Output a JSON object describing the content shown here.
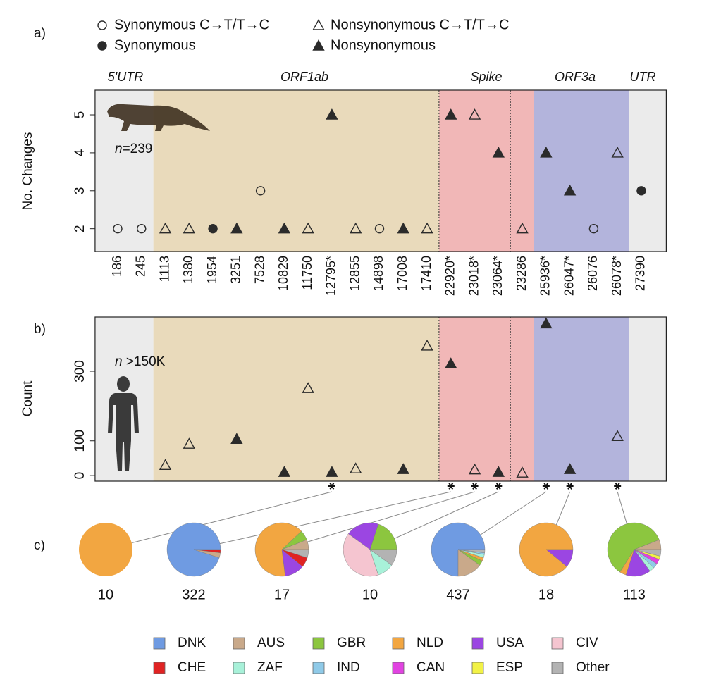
{
  "chart_data": [
    {
      "type": "scatter",
      "panel_label": "a)",
      "y_label": "No. Changes",
      "annotation": [
        "n",
        "=239"
      ],
      "regions": [
        {
          "label": "5'UTR",
          "color": "#ebebeb"
        },
        {
          "label": "ORF1ab",
          "color": "#e9dabb"
        },
        {
          "label": "Spike",
          "color": "#f1b7b7"
        },
        {
          "label": "ORF3a",
          "color": "#b3b4dc"
        },
        {
          "label": "UTR",
          "color": "#ebebeb"
        }
      ],
      "categories": [
        "186",
        "245",
        "1113",
        "1380",
        "1954",
        "3251",
        "7528",
        "10829",
        "11750",
        "12795*",
        "12855",
        "14898",
        "17008",
        "17410",
        "22920*",
        "23018*",
        "23064*",
        "23286",
        "25936*",
        "26047*",
        "26076",
        "26078*",
        "27390"
      ],
      "series": [
        {
          "name": "Synonymous C→T/T→C",
          "marker": "circle",
          "filled": false,
          "color": "#2b2b2b",
          "values": [
            2,
            2,
            null,
            null,
            null,
            null,
            3,
            null,
            null,
            null,
            null,
            2,
            null,
            null,
            null,
            null,
            null,
            null,
            null,
            null,
            2,
            null,
            null
          ]
        },
        {
          "name": "Nonsynonymous C→T/T→C",
          "marker": "triangle",
          "filled": false,
          "color": "#2b2b2b",
          "values": [
            null,
            null,
            2,
            2,
            null,
            null,
            null,
            null,
            2,
            null,
            2,
            null,
            null,
            2,
            null,
            5,
            null,
            2,
            null,
            null,
            null,
            4,
            null
          ]
        },
        {
          "name": "Synonymous",
          "marker": "circle",
          "filled": true,
          "color": "#2b2b2b",
          "values": [
            null,
            null,
            null,
            null,
            2,
            null,
            null,
            null,
            null,
            null,
            null,
            null,
            null,
            null,
            null,
            null,
            null,
            null,
            null,
            null,
            null,
            null,
            3
          ]
        },
        {
          "name": "Nonsynonymous",
          "marker": "triangle",
          "filled": true,
          "color": "#2b2b2b",
          "values": [
            null,
            null,
            null,
            null,
            null,
            2,
            null,
            2,
            null,
            5,
            null,
            null,
            2,
            null,
            5,
            null,
            4,
            null,
            4,
            3,
            null,
            null,
            null
          ]
        }
      ],
      "ylim": [
        1.4,
        5.65
      ],
      "yticks": [
        2,
        3,
        4,
        5
      ]
    },
    {
      "type": "scatter",
      "panel_label": "b)",
      "y_label": "Count",
      "annotation": [
        "n",
        " >150K"
      ],
      "series": [
        {
          "marker": "triangle",
          "filled": false,
          "color": "#2b2b2b",
          "values": [
            null,
            null,
            30,
            91,
            null,
            null,
            null,
            null,
            251,
            null,
            20,
            null,
            null,
            373,
            null,
            17,
            null,
            8,
            null,
            null,
            null,
            113,
            null
          ]
        },
        {
          "marker": "triangle",
          "filled": true,
          "color": "#2b2b2b",
          "values": [
            null,
            null,
            null,
            null,
            null,
            105,
            null,
            10,
            null,
            10,
            null,
            null,
            18,
            null,
            322,
            null,
            10,
            null,
            437,
            18,
            null,
            null,
            null
          ]
        }
      ],
      "ylim": [
        -16,
        456
      ],
      "yticks": [
        0,
        100,
        300
      ]
    },
    {
      "type": "pie",
      "panel_label": "c)",
      "categories": [
        "DNK",
        "AUS",
        "GBR",
        "NLD",
        "USA",
        "CIV",
        "CHE",
        "ZAF",
        "IND",
        "CAN",
        "ESP",
        "Other"
      ],
      "colors": [
        "#6f9be2",
        "#c9a98a",
        "#8cc63f",
        "#f2a641",
        "#9b46e2",
        "#f5c5d0",
        "#e02323",
        "#a8f1d9",
        "#8fcae8",
        "#e143e1",
        "#f2f246",
        "#b3b3b3"
      ],
      "pies": [
        {
          "total": 10,
          "values": [
            0,
            0,
            0,
            100,
            0,
            0,
            0,
            0,
            0,
            0,
            0,
            0
          ]
        },
        {
          "total": 322,
          "values": [
            95,
            3,
            0,
            0,
            0,
            0,
            2,
            0,
            0,
            0,
            0,
            0
          ]
        },
        {
          "total": 17,
          "values": [
            0,
            6,
            6,
            65,
            12,
            0,
            6,
            0,
            0,
            0,
            0,
            5
          ]
        },
        {
          "total": 10,
          "values": [
            0,
            0,
            20,
            0,
            20,
            40,
            0,
            10,
            0,
            0,
            0,
            10
          ]
        },
        {
          "total": 437,
          "values": [
            75,
            15,
            3,
            2,
            0,
            0,
            0,
            2,
            1,
            0,
            0,
            2
          ]
        },
        {
          "total": 18,
          "values": [
            0,
            0,
            0,
            89,
            11,
            0,
            0,
            0,
            0,
            0,
            0,
            0
          ]
        },
        {
          "total": 113,
          "values": [
            0,
            6,
            60,
            4,
            15,
            0,
            0,
            3,
            3,
            3,
            2,
            4
          ]
        }
      ]
    }
  ]
}
